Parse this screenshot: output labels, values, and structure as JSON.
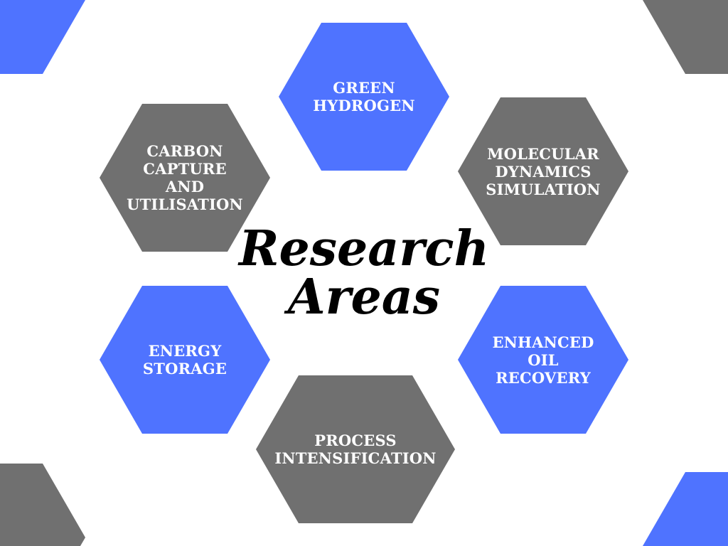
{
  "title": {
    "line1": "Research",
    "line2": "Areas"
  },
  "colors": {
    "blue": "#4f73ff",
    "gray": "#707070",
    "background": "#ffffff",
    "text": "#ffffff",
    "title": "#000000"
  },
  "areas": [
    {
      "label": "GREEN\nHYDROGEN",
      "color": "blue"
    },
    {
      "label": "CARBON\nCAPTURE\nAND\nUTILISATION",
      "color": "gray"
    },
    {
      "label": "MOLECULAR\nDYNAMICS\nSIMULATION",
      "color": "gray"
    },
    {
      "label": "ENERGY\nSTORAGE",
      "color": "blue"
    },
    {
      "label": "ENHANCED\nOIL\nRECOVERY",
      "color": "blue"
    },
    {
      "label": "PROCESS\nINTENSIFICATION",
      "color": "gray"
    }
  ],
  "corner_shapes": [
    {
      "corner": "top-left",
      "color": "blue"
    },
    {
      "corner": "top-right",
      "color": "gray"
    },
    {
      "corner": "bottom-left",
      "color": "gray"
    },
    {
      "corner": "bottom-right",
      "color": "blue"
    }
  ]
}
